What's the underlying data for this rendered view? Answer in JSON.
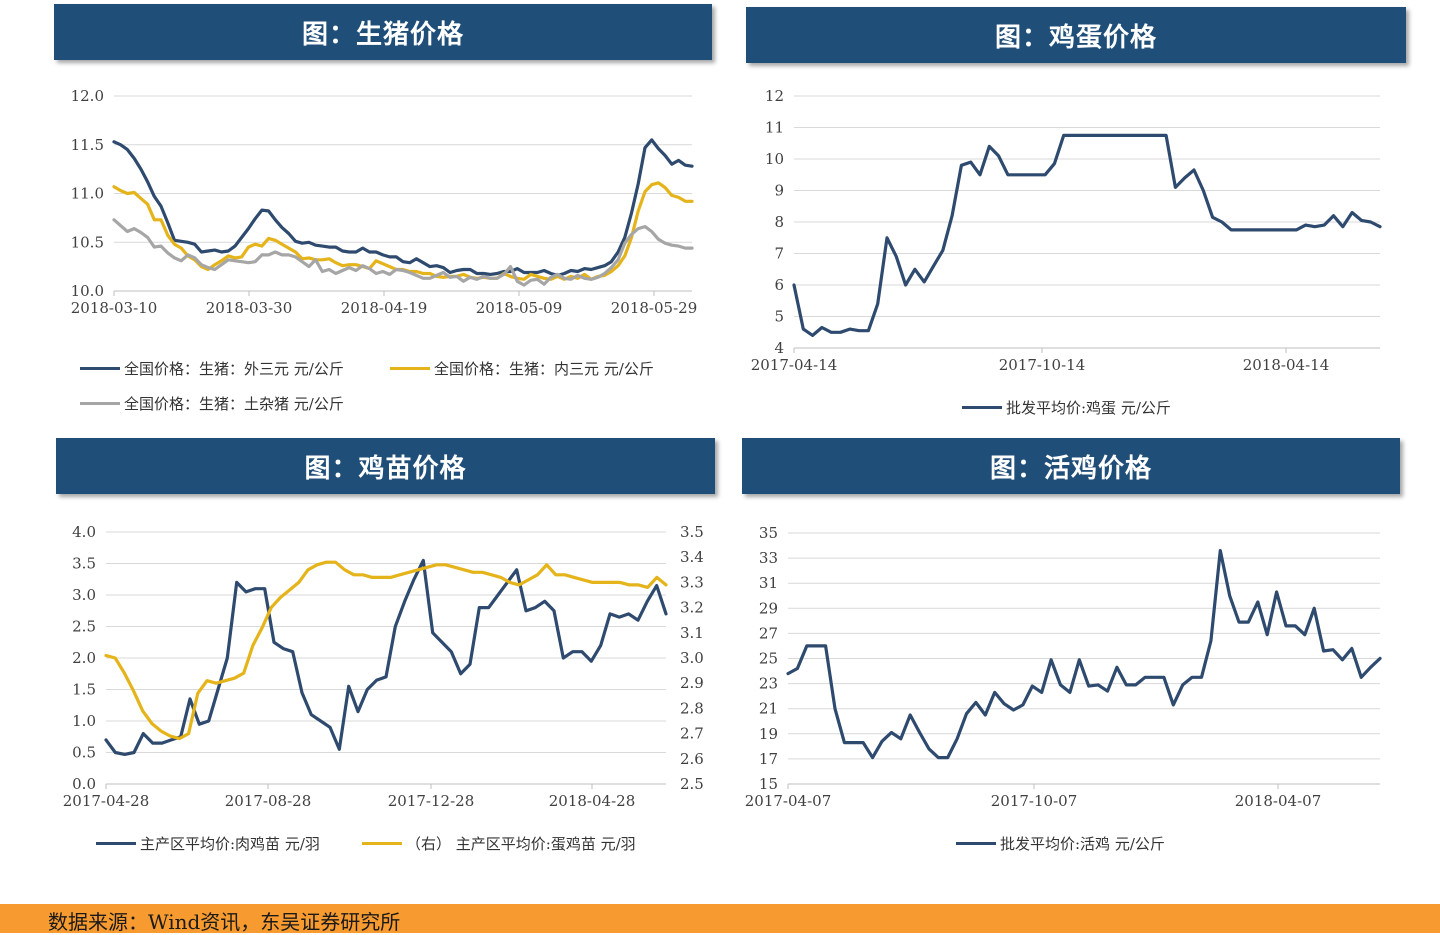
{
  "panels": {
    "pig": {
      "title": "图：生猪价格"
    },
    "egg": {
      "title": "图：鸡蛋价格"
    },
    "chick": {
      "title": "图：鸡苗价格"
    },
    "live": {
      "title": "图：活鸡价格"
    }
  },
  "colors": {
    "navy": "#2e4a6e",
    "gold": "#e5b31a",
    "gray": "#a6a6a6",
    "banner": "#1f4e79",
    "footer": "#f79a2f"
  },
  "footer": {
    "source": "数据来源：Wind资讯，东吴证券研究所"
  },
  "chart_data": [
    {
      "id": "pig",
      "type": "line",
      "x_ticks": [
        "2018-03-10",
        "2018-03-30",
        "2018-04-19",
        "2018-05-09",
        "2018-05-29"
      ],
      "y_ticks": [
        "12.0",
        "11.5",
        "11.0",
        "10.5",
        "10.0"
      ],
      "ylim": [
        10.0,
        12.0
      ],
      "series": [
        {
          "name": "全国价格：生猪：外三元 元/公斤",
          "color": "#2e4a6e",
          "values": [
            11.53,
            11.5,
            11.45,
            11.36,
            11.25,
            11.12,
            10.97,
            10.87,
            10.7,
            10.52,
            10.51,
            10.5,
            10.48,
            10.4,
            10.41,
            10.42,
            10.4,
            10.41,
            10.46,
            10.55,
            10.64,
            10.74,
            10.83,
            10.82,
            10.73,
            10.65,
            10.59,
            10.51,
            10.49,
            10.5,
            10.47,
            10.46,
            10.45,
            10.45,
            10.41,
            10.4,
            10.4,
            10.44,
            10.4,
            10.4,
            10.37,
            10.35,
            10.35,
            10.3,
            10.29,
            10.33,
            10.29,
            10.25,
            10.26,
            10.24,
            10.19,
            10.21,
            10.22,
            10.22,
            10.18,
            10.18,
            10.17,
            10.18,
            10.2,
            10.2,
            10.23,
            10.19,
            10.19,
            10.19,
            10.21,
            10.18,
            10.16,
            10.18,
            10.21,
            10.2,
            10.23,
            10.22,
            10.24,
            10.26,
            10.3,
            10.4,
            10.55,
            10.8,
            11.1,
            11.47,
            11.55,
            11.46,
            11.39,
            11.3,
            11.34,
            11.29,
            11.28
          ]
        },
        {
          "name": "全国价格：生猪：内三元 元/公斤",
          "color": "#e5b31a",
          "values": [
            11.07,
            11.03,
            11.0,
            11.01,
            10.95,
            10.89,
            10.73,
            10.73,
            10.57,
            10.48,
            10.44,
            10.36,
            10.32,
            10.25,
            10.22,
            10.27,
            10.31,
            10.36,
            10.34,
            10.35,
            10.45,
            10.48,
            10.46,
            10.54,
            10.52,
            10.48,
            10.44,
            10.4,
            10.33,
            10.34,
            10.32,
            10.32,
            10.33,
            10.29,
            10.26,
            10.27,
            10.27,
            10.25,
            10.23,
            10.31,
            10.28,
            10.25,
            10.22,
            10.22,
            10.2,
            10.2,
            10.18,
            10.18,
            10.15,
            10.14,
            10.15,
            10.15,
            10.17,
            10.14,
            10.13,
            10.14,
            10.13,
            10.13,
            10.18,
            10.15,
            10.13,
            10.12,
            10.17,
            10.15,
            10.13,
            10.12,
            10.15,
            10.12,
            10.15,
            10.13,
            10.17,
            10.12,
            10.15,
            10.16,
            10.2,
            10.26,
            10.36,
            10.55,
            10.82,
            11.02,
            11.09,
            11.11,
            11.06,
            10.98,
            10.96,
            10.92,
            10.92
          ]
        },
        {
          "name": "全国价格：生猪：土杂猪 元/公斤",
          "color": "#a6a6a6",
          "values": [
            10.73,
            10.67,
            10.61,
            10.64,
            10.6,
            10.55,
            10.45,
            10.46,
            10.39,
            10.34,
            10.31,
            10.37,
            10.34,
            10.27,
            10.24,
            10.22,
            10.27,
            10.32,
            10.31,
            10.3,
            10.29,
            10.3,
            10.37,
            10.37,
            10.4,
            10.37,
            10.37,
            10.35,
            10.3,
            10.25,
            10.32,
            10.2,
            10.22,
            10.18,
            10.21,
            10.24,
            10.21,
            10.26,
            10.23,
            10.18,
            10.2,
            10.17,
            10.22,
            10.21,
            10.19,
            10.16,
            10.13,
            10.13,
            10.16,
            10.19,
            10.14,
            10.15,
            10.1,
            10.14,
            10.12,
            10.15,
            10.13,
            10.13,
            10.17,
            10.25,
            10.1,
            10.06,
            10.11,
            10.12,
            10.07,
            10.14,
            10.17,
            10.13,
            10.12,
            10.16,
            10.13,
            10.12,
            10.14,
            10.18,
            10.24,
            10.32,
            10.49,
            10.58,
            10.64,
            10.66,
            10.61,
            10.53,
            10.49,
            10.47,
            10.46,
            10.44,
            10.44
          ]
        }
      ]
    },
    {
      "id": "egg",
      "type": "line",
      "x_ticks": [
        "2017-04-14",
        "2017-10-14",
        "2018-04-14"
      ],
      "y_ticks": [
        "12",
        "11",
        "10",
        "9",
        "8",
        "7",
        "6",
        "5",
        "4"
      ],
      "ylim": [
        4,
        12
      ],
      "series": [
        {
          "name": "批发平均价:鸡蛋 元/公斤",
          "color": "#2e4a6e",
          "values": [
            6.0,
            4.6,
            4.4,
            4.65,
            4.5,
            4.5,
            4.6,
            4.55,
            4.55,
            5.4,
            7.5,
            6.9,
            6.0,
            6.5,
            6.1,
            6.6,
            7.1,
            8.2,
            9.8,
            9.9,
            9.5,
            10.4,
            10.1,
            9.5,
            9.5,
            9.5,
            9.5,
            9.5,
            9.85,
            10.75,
            10.75,
            10.75,
            10.75,
            10.75,
            10.75,
            10.75,
            10.75,
            10.75,
            10.75,
            10.75,
            10.75,
            9.1,
            9.4,
            9.65,
            9.0,
            8.15,
            8.0,
            7.75,
            7.75,
            7.75,
            7.75,
            7.75,
            7.75,
            7.75,
            7.75,
            7.9,
            7.85,
            7.9,
            8.2,
            7.85,
            8.3,
            8.05,
            8.0,
            7.85
          ]
        }
      ]
    },
    {
      "id": "chick",
      "type": "line",
      "x_ticks": [
        "2017-04-28",
        "2017-08-28",
        "2017-12-28",
        "2018-04-28"
      ],
      "y_ticks_left": [
        "4.0",
        "3.5",
        "3.0",
        "2.5",
        "2.0",
        "1.5",
        "1.0",
        "0.5",
        "0.0"
      ],
      "y_ticks_right": [
        "3.5",
        "3.4",
        "3.3",
        "3.2",
        "3.1",
        "3.0",
        "2.9",
        "2.8",
        "2.7",
        "2.6",
        "2.5"
      ],
      "ylim_left": [
        0,
        4
      ],
      "ylim_right": [
        2.5,
        3.5
      ],
      "series": [
        {
          "name": "主产区平均价:肉鸡苗 元/羽",
          "color": "#2e4a6e",
          "axis": "left",
          "values": [
            0.7,
            0.5,
            0.47,
            0.5,
            0.8,
            0.65,
            0.65,
            0.7,
            0.75,
            1.35,
            0.95,
            1.0,
            1.5,
            2.0,
            3.2,
            3.05,
            3.1,
            3.1,
            2.25,
            2.15,
            2.1,
            1.45,
            1.1,
            1.0,
            0.9,
            0.55,
            1.55,
            1.15,
            1.5,
            1.65,
            1.7,
            2.5,
            2.9,
            3.25,
            3.55,
            2.4,
            2.25,
            2.1,
            1.75,
            1.9,
            2.8,
            2.8,
            3.0,
            3.2,
            3.4,
            2.75,
            2.8,
            2.9,
            2.75,
            2.0,
            2.1,
            2.1,
            1.95,
            2.2,
            2.7,
            2.65,
            2.7,
            2.6,
            2.9,
            3.15,
            2.7
          ]
        },
        {
          "name": "（右） 主产区平均价:蛋鸡苗 元/羽",
          "color": "#e5b31a",
          "axis": "right",
          "values": [
            3.01,
            3.0,
            2.94,
            2.87,
            2.79,
            2.74,
            2.71,
            2.69,
            2.68,
            2.7,
            2.86,
            2.91,
            2.9,
            2.91,
            2.92,
            2.94,
            3.05,
            3.12,
            3.2,
            3.24,
            3.27,
            3.3,
            3.35,
            3.37,
            3.38,
            3.38,
            3.35,
            3.33,
            3.33,
            3.32,
            3.32,
            3.32,
            3.33,
            3.34,
            3.35,
            3.36,
            3.37,
            3.37,
            3.36,
            3.35,
            3.34,
            3.34,
            3.33,
            3.32,
            3.3,
            3.29,
            3.31,
            3.33,
            3.37,
            3.33,
            3.33,
            3.32,
            3.31,
            3.3,
            3.3,
            3.3,
            3.3,
            3.29,
            3.29,
            3.28,
            3.32,
            3.29
          ]
        }
      ]
    },
    {
      "id": "live",
      "type": "line",
      "x_ticks": [
        "2017-04-07",
        "2017-10-07",
        "2018-04-07"
      ],
      "y_ticks": [
        "35",
        "33",
        "31",
        "29",
        "27",
        "25",
        "23",
        "21",
        "19",
        "17",
        "15"
      ],
      "ylim": [
        15,
        35
      ],
      "series": [
        {
          "name": "批发平均价:活鸡 元/公斤",
          "color": "#2e4a6e",
          "values": [
            23.8,
            24.2,
            26.0,
            26.0,
            26.0,
            21.0,
            18.3,
            18.3,
            18.3,
            17.1,
            18.4,
            19.1,
            18.6,
            20.5,
            19.1,
            17.8,
            17.1,
            17.1,
            18.6,
            20.6,
            21.5,
            20.5,
            22.3,
            21.4,
            20.9,
            21.3,
            22.8,
            22.3,
            24.9,
            22.9,
            22.3,
            24.9,
            22.8,
            22.9,
            22.4,
            24.3,
            22.9,
            22.9,
            23.5,
            23.5,
            23.5,
            21.3,
            22.9,
            23.5,
            23.5,
            26.4,
            33.6,
            30.0,
            27.9,
            27.9,
            29.5,
            26.9,
            30.3,
            27.6,
            27.6,
            26.9,
            29.0,
            25.6,
            25.7,
            24.9,
            25.8,
            23.5,
            24.3,
            25.0
          ]
        }
      ]
    }
  ]
}
